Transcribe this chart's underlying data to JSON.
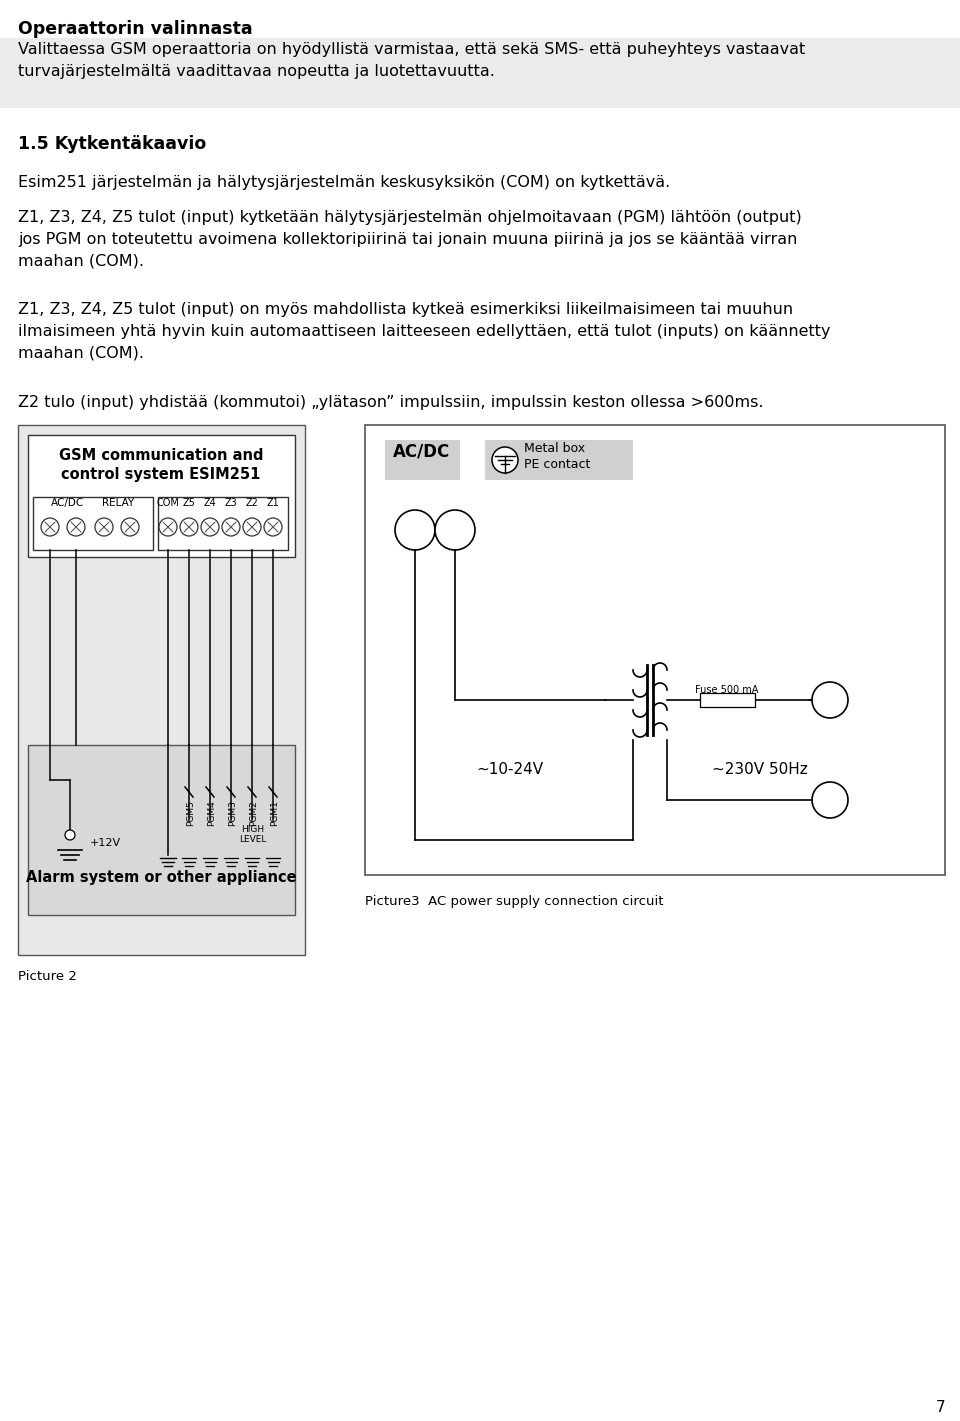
{
  "page_bg": "#ffffff",
  "header_title": "Operaattorin valinnasta",
  "para1": "Valittaessa GSM operaattoria on hyödyllistä varmistaa, että sekä SMS- että puheyhteys vastaavat\nturvajärjestelmältä vaadittavaa nopeutta ja luotettavuutta.",
  "section_title": "1.5 Kytkentäkaavio",
  "para2": "Esim251 järjestelmän ja hälytysjärjestelmän keskusyksikön (COM) on kytkettävä.",
  "para3": "Z1, Z3, Z4, Z5 tulot (input) kytketään hälytysjärjestelmän ohjelmoitavaan (PGM) lähtöön (output)\njos PGM on toteutettu avoimena kollektoripiirinä tai jonain muuna piirinä ja jos se kääntää virran\nmaahan (COM).",
  "para4": "Z1, Z3, Z4, Z5 tulot (input) on myös mahdollista kytkeä esimerkiksi liikeilmaisimeen tai muuhun\nilmaisimeen yhtä hyvin kuin automaattiseen laitteeseen edellyttäen, että tulot (inputs) on käännetty\nmaahan (COM).",
  "para5": "Z2 tulo (input) yhdistää (kommutoi) „ylätason” impulssiin, impulssin keston ollessa >600ms.",
  "pic2_caption": "Picture 2",
  "pic3_caption": "Picture3  AC power supply connection circuit",
  "page_number": "7",
  "gray_bg": "#e8e8e8",
  "para1_bg": "#ebebeb",
  "diag1_bg": "#e8e8e8",
  "alarm_bg": "#d8d8d8",
  "label_bg": "#d0d0d0"
}
